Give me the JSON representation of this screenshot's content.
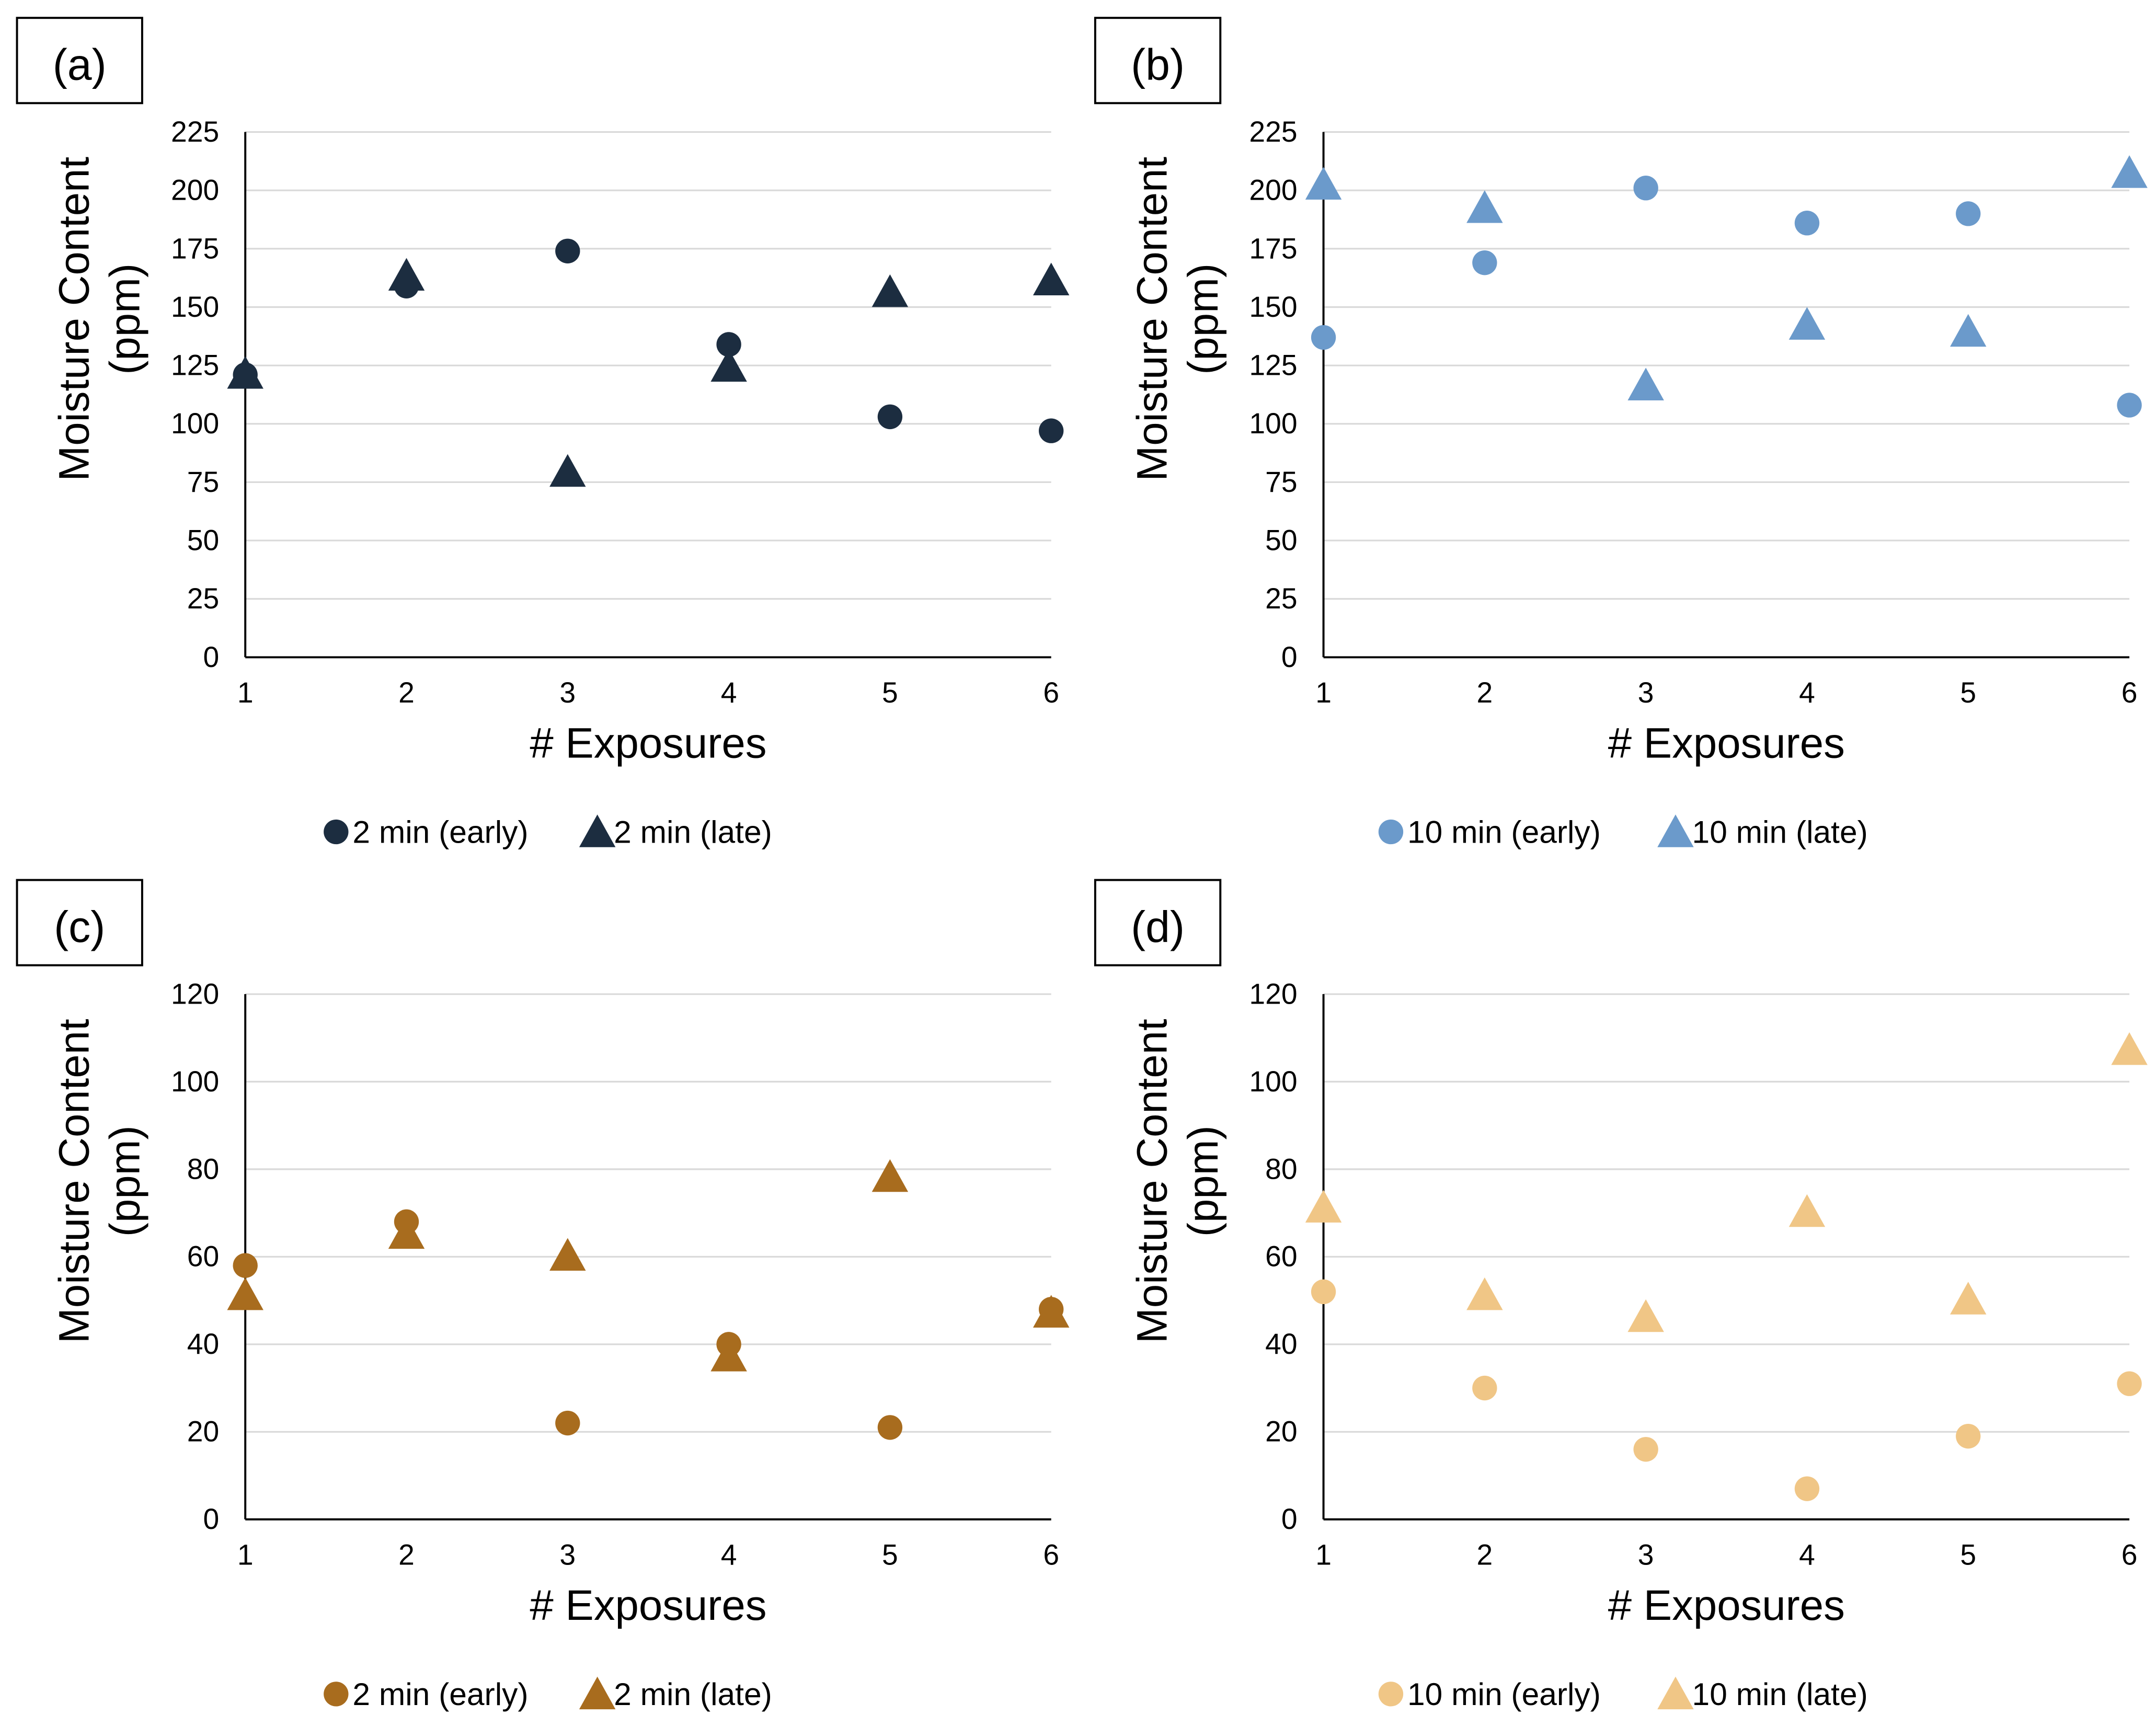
{
  "chart_data": [
    {
      "type": "scatter",
      "panel_label": "(a)",
      "xlabel": "# Exposures",
      "ylabel_line1": "Moisture Content",
      "ylabel_line2": "(ppm)",
      "x": [
        1,
        2,
        3,
        4,
        5,
        6
      ],
      "x_ticks": [
        "1",
        "2",
        "3",
        "4",
        "5",
        "6"
      ],
      "ylim": [
        0,
        225
      ],
      "y_ticks": [
        "0",
        "25",
        "50",
        "75",
        "100",
        "125",
        "150",
        "175",
        "200",
        "225"
      ],
      "grid": true,
      "legend_position": "bottom",
      "series": [
        {
          "name": "2 min (early)",
          "marker": "circle",
          "color": "#1c2d40",
          "values": [
            121,
            159,
            174,
            134,
            103,
            97
          ]
        },
        {
          "name": "2 min (late)",
          "marker": "triangle",
          "color": "#1c2d40",
          "values": [
            121,
            163,
            79,
            124,
            156,
            161
          ]
        }
      ]
    },
    {
      "type": "scatter",
      "panel_label": "(b)",
      "xlabel": "# Exposures",
      "ylabel_line1": "Moisture Content",
      "ylabel_line2": "(ppm)",
      "x": [
        1,
        2,
        3,
        4,
        5,
        6
      ],
      "x_ticks": [
        "1",
        "2",
        "3",
        "4",
        "5",
        "6"
      ],
      "ylim": [
        0,
        225
      ],
      "y_ticks": [
        "0",
        "25",
        "50",
        "75",
        "100",
        "125",
        "150",
        "175",
        "200",
        "225"
      ],
      "grid": true,
      "legend_position": "bottom",
      "series": [
        {
          "name": "10 min (early)",
          "marker": "circle",
          "color": "#6b9acb",
          "values": [
            137,
            169,
            201,
            186,
            190,
            108
          ]
        },
        {
          "name": "10 min (late)",
          "marker": "triangle",
          "color": "#6b9acb",
          "values": [
            202,
            192,
            116,
            142,
            139,
            207
          ]
        }
      ]
    },
    {
      "type": "scatter",
      "panel_label": "(c)",
      "xlabel": "# Exposures",
      "ylabel_line1": "Moisture Content",
      "ylabel_line2": "(ppm)",
      "x": [
        1,
        2,
        3,
        4,
        5,
        6
      ],
      "x_ticks": [
        "1",
        "2",
        "3",
        "4",
        "5",
        "6"
      ],
      "ylim": [
        0,
        120
      ],
      "y_ticks": [
        "0",
        "20",
        "40",
        "60",
        "80",
        "100",
        "120"
      ],
      "grid": true,
      "legend_position": "bottom",
      "series": [
        {
          "name": "2 min (early)",
          "marker": "circle",
          "color": "#a86c1e",
          "values": [
            58,
            68,
            22,
            40,
            21,
            48
          ]
        },
        {
          "name": "2 min (late)",
          "marker": "triangle",
          "color": "#a86c1e",
          "values": [
            51,
            65,
            60,
            37,
            78,
            47
          ]
        }
      ]
    },
    {
      "type": "scatter",
      "panel_label": "(d)",
      "xlabel": "# Exposures",
      "ylabel_line1": "Moisture Content",
      "ylabel_line2": "(ppm)",
      "x": [
        1,
        2,
        3,
        4,
        5,
        6
      ],
      "x_ticks": [
        "1",
        "2",
        "3",
        "4",
        "5",
        "6"
      ],
      "ylim": [
        0,
        120
      ],
      "y_ticks": [
        "0",
        "20",
        "40",
        "60",
        "80",
        "100",
        "120"
      ],
      "grid": true,
      "legend_position": "bottom",
      "series": [
        {
          "name": "10 min (early)",
          "marker": "circle",
          "color": "#f0c686",
          "values": [
            52,
            30,
            16,
            7,
            19,
            31
          ]
        },
        {
          "name": "10 min (late)",
          "marker": "triangle",
          "color": "#f0c686",
          "values": [
            71,
            51,
            46,
            70,
            50,
            107
          ]
        }
      ]
    }
  ]
}
